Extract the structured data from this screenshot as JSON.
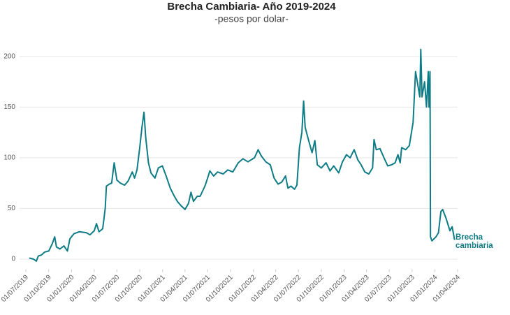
{
  "chart_data": {
    "type": "line",
    "title": "Brecha Cambiaria- Año 2019-2024",
    "subtitle": "-pesos por dolar-",
    "xlim": [
      "2019-07-01",
      "2024-04-01"
    ],
    "xticks": [
      {
        "value": "2019-07-01",
        "label": "01/07/2019"
      },
      {
        "value": "2019-10-01",
        "label": "01/10/2019"
      },
      {
        "value": "2020-01-01",
        "label": "01/01/2020"
      },
      {
        "value": "2020-04-01",
        "label": "01/04/2020"
      },
      {
        "value": "2020-07-01",
        "label": "01/07/2020"
      },
      {
        "value": "2020-10-01",
        "label": "01/10/2020"
      },
      {
        "value": "2021-01-01",
        "label": "01/01/2021"
      },
      {
        "value": "2021-04-01",
        "label": "01/04/2021"
      },
      {
        "value": "2021-07-01",
        "label": "01/07/2021"
      },
      {
        "value": "2021-10-01",
        "label": "01/10/2021"
      },
      {
        "value": "2022-01-01",
        "label": "01/01/2022"
      },
      {
        "value": "2022-04-01",
        "label": "01/04/2022"
      },
      {
        "value": "2022-07-01",
        "label": "01/07/2022"
      },
      {
        "value": "2022-10-01",
        "label": "01/10/2022"
      },
      {
        "value": "2023-01-01",
        "label": "01/01/2023"
      },
      {
        "value": "2023-04-01",
        "label": "01/04/2023"
      },
      {
        "value": "2023-07-01",
        "label": "01/07/2023"
      },
      {
        "value": "2023-10-01",
        "label": "01/10/2023"
      },
      {
        "value": "2024-01-01",
        "label": "01/01/2024"
      },
      {
        "value": "2024-04-01",
        "label": "01/04/2024"
      }
    ],
    "ylim": [
      -10,
      215
    ],
    "yticks": [
      0,
      50,
      100,
      150,
      200
    ],
    "grid": true,
    "x": [
      "2019-07-15",
      "2019-08-01",
      "2019-08-12",
      "2019-08-20",
      "2019-09-01",
      "2019-09-15",
      "2019-10-01",
      "2019-10-15",
      "2019-10-25",
      "2019-11-01",
      "2019-11-15",
      "2019-12-01",
      "2019-12-15",
      "2019-12-25",
      "2020-01-10",
      "2020-02-01",
      "2020-03-01",
      "2020-03-15",
      "2020-04-01",
      "2020-04-10",
      "2020-04-20",
      "2020-05-05",
      "2020-05-15",
      "2020-05-20",
      "2020-06-01",
      "2020-06-10",
      "2020-06-20",
      "2020-07-01",
      "2020-07-15",
      "2020-08-01",
      "2020-08-15",
      "2020-09-01",
      "2020-09-10",
      "2020-09-20",
      "2020-10-01",
      "2020-10-10",
      "2020-10-18",
      "2020-10-25",
      "2020-11-05",
      "2020-11-15",
      "2020-12-01",
      "2020-12-15",
      "2020-12-31",
      "2021-01-15",
      "2021-02-01",
      "2021-02-15",
      "2021-03-01",
      "2021-03-15",
      "2021-04-01",
      "2021-04-15",
      "2021-04-25",
      "2021-05-05",
      "2021-05-20",
      "2021-06-01",
      "2021-06-20",
      "2021-07-01",
      "2021-07-10",
      "2021-07-25",
      "2021-08-10",
      "2021-09-01",
      "2021-09-20",
      "2021-10-10",
      "2021-11-01",
      "2021-11-20",
      "2021-12-10",
      "2022-01-05",
      "2022-01-20",
      "2022-02-01",
      "2022-02-20",
      "2022-03-10",
      "2022-03-25",
      "2022-04-10",
      "2022-04-25",
      "2022-05-10",
      "2022-05-20",
      "2022-06-01",
      "2022-06-15",
      "2022-06-25",
      "2022-07-05",
      "2022-07-15",
      "2022-07-22",
      "2022-07-28",
      "2022-08-10",
      "2022-08-25",
      "2022-09-05",
      "2022-09-15",
      "2022-10-01",
      "2022-10-20",
      "2022-11-05",
      "2022-11-20",
      "2022-12-10",
      "2022-12-25",
      "2023-01-10",
      "2023-01-25",
      "2023-02-10",
      "2023-02-25",
      "2023-03-10",
      "2023-03-25",
      "2023-04-10",
      "2023-04-25",
      "2023-05-01",
      "2023-05-10",
      "2023-05-25",
      "2023-06-10",
      "2023-06-25",
      "2023-07-10",
      "2023-07-25",
      "2023-08-05",
      "2023-08-14",
      "2023-08-20",
      "2023-09-05",
      "2023-09-20",
      "2023-10-05",
      "2023-10-15",
      "2023-10-22",
      "2023-11-01",
      "2023-11-05",
      "2023-11-10",
      "2023-11-20",
      "2023-11-28",
      "2023-12-05",
      "2023-12-08",
      "2023-12-12",
      "2023-12-14",
      "2023-12-20",
      "2024-01-05",
      "2024-01-15",
      "2024-01-25",
      "2024-02-01",
      "2024-02-15",
      "2024-03-01",
      "2024-03-10",
      "2024-03-20"
    ],
    "series": [
      {
        "name": "Brecha cambiaria",
        "color": "#0e7c86",
        "values": [
          1,
          0,
          -2,
          3,
          4,
          7,
          8,
          15,
          22,
          12,
          10,
          13,
          8,
          20,
          25,
          27,
          26,
          24,
          28,
          35,
          27,
          30,
          50,
          72,
          74,
          75,
          95,
          78,
          75,
          73,
          77,
          86,
          80,
          88,
          110,
          130,
          145,
          120,
          95,
          85,
          80,
          90,
          92,
          82,
          70,
          63,
          57,
          53,
          49,
          55,
          66,
          57,
          62,
          62,
          72,
          80,
          87,
          82,
          86,
          84,
          88,
          86,
          95,
          99,
          96,
          100,
          108,
          102,
          96,
          93,
          80,
          74,
          76,
          82,
          70,
          72,
          69,
          73,
          110,
          125,
          156,
          130,
          118,
          105,
          117,
          93,
          90,
          95,
          87,
          92,
          85,
          96,
          103,
          100,
          108,
          98,
          93,
          86,
          84,
          90,
          118,
          108,
          109,
          100,
          92,
          93,
          95,
          103,
          95,
          110,
          108,
          112,
          135,
          185,
          175,
          160,
          207,
          160,
          175,
          150,
          185,
          150,
          185,
          22,
          18,
          22,
          26,
          47,
          49,
          40,
          28,
          32,
          19
        ]
      }
    ]
  }
}
